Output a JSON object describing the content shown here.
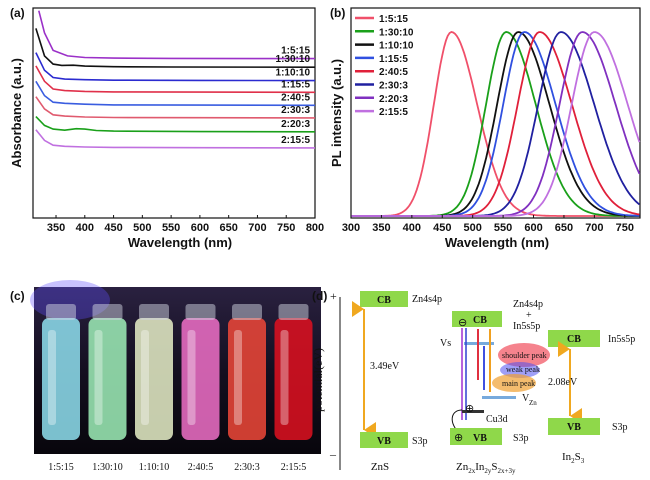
{
  "chart_data": [
    {
      "panel": "(a)",
      "type": "line",
      "xlabel": "Wavelength (nm)",
      "ylabel": "Absorbance (a.u.)",
      "xlim": [
        310,
        800
      ],
      "xticks": [
        350,
        400,
        450,
        500,
        550,
        600,
        650,
        700,
        750,
        800
      ],
      "series": [
        {
          "name": "1:5:15",
          "color": "#9b30c8",
          "points": [
            [
              320,
              0.94
            ],
            [
              330,
              0.84
            ],
            [
              345,
              0.76
            ],
            [
              370,
              0.735
            ],
            [
              400,
              0.728
            ],
            [
              450,
              0.725
            ],
            [
              550,
              0.724
            ],
            [
              800,
              0.723
            ]
          ]
        },
        {
          "name": "1:30:10",
          "color": "#111111",
          "points": [
            [
              315,
              0.86
            ],
            [
              330,
              0.735
            ],
            [
              345,
              0.698
            ],
            [
              360,
              0.692
            ],
            [
              380,
              0.693
            ],
            [
              400,
              0.689
            ],
            [
              450,
              0.686
            ],
            [
              550,
              0.685
            ],
            [
              800,
              0.684
            ]
          ]
        },
        {
          "name": "1:10:10",
          "color": "#2b2bd0",
          "points": [
            [
              315,
              0.75
            ],
            [
              330,
              0.67
            ],
            [
              345,
              0.637
            ],
            [
              365,
              0.63
            ],
            [
              400,
              0.627
            ],
            [
              450,
              0.625
            ],
            [
              600,
              0.624
            ],
            [
              800,
              0.623
            ]
          ]
        },
        {
          "name": "1:15:5",
          "color": "#e0304a",
          "points": [
            [
              315,
              0.69
            ],
            [
              330,
              0.62
            ],
            [
              345,
              0.585
            ],
            [
              365,
              0.578
            ],
            [
              400,
              0.574
            ],
            [
              450,
              0.572
            ],
            [
              600,
              0.571
            ],
            [
              800,
              0.57
            ]
          ]
        },
        {
          "name": "2:40:5",
          "color": "#3a5de0",
          "points": [
            [
              315,
              0.62
            ],
            [
              330,
              0.555
            ],
            [
              345,
              0.525
            ],
            [
              365,
              0.52
            ],
            [
              400,
              0.516
            ],
            [
              450,
              0.513
            ],
            [
              600,
              0.512
            ],
            [
              800,
              0.511
            ]
          ]
        },
        {
          "name": "2:30:3",
          "color": "#e05a6e",
          "points": [
            [
              315,
              0.55
            ],
            [
              330,
              0.495
            ],
            [
              345,
              0.468
            ],
            [
              365,
              0.462
            ],
            [
              400,
              0.458
            ],
            [
              450,
              0.456
            ],
            [
              600,
              0.455
            ],
            [
              800,
              0.454
            ]
          ]
        },
        {
          "name": "2:20:3",
          "color": "#1aa01a",
          "points": [
            [
              315,
              0.46
            ],
            [
              330,
              0.42
            ],
            [
              345,
              0.403
            ],
            [
              365,
              0.398
            ],
            [
              385,
              0.405
            ],
            [
              400,
              0.403
            ],
            [
              420,
              0.397
            ],
            [
              450,
              0.394
            ],
            [
              600,
              0.392
            ],
            [
              800,
              0.391
            ]
          ]
        },
        {
          "name": "2:15:5",
          "color": "#c070e0",
          "points": [
            [
              315,
              0.4
            ],
            [
              330,
              0.352
            ],
            [
              345,
              0.33
            ],
            [
              365,
              0.325
            ],
            [
              400,
              0.322
            ],
            [
              450,
              0.32
            ],
            [
              600,
              0.319
            ],
            [
              800,
              0.318
            ]
          ]
        }
      ]
    },
    {
      "panel": "(b)",
      "type": "line",
      "xlabel": "Wavelength (nm)",
      "ylabel": "PL intensity (a.u.)",
      "xlim": [
        300,
        775
      ],
      "xticks": [
        300,
        350,
        400,
        450,
        500,
        550,
        600,
        650,
        700,
        750
      ],
      "series": [
        {
          "name": "1:5:15",
          "color": "#f0506a",
          "peak": 465,
          "width": 48
        },
        {
          "name": "1:30:10",
          "color": "#1aa01a",
          "peak": 555,
          "width": 55
        },
        {
          "name": "1:10:10",
          "color": "#111111",
          "peak": 575,
          "width": 58
        },
        {
          "name": "1:15:5",
          "color": "#3050e0",
          "peak": 585,
          "width": 58
        },
        {
          "name": "2:40:5",
          "color": "#e0203a",
          "peak": 610,
          "width": 60
        },
        {
          "name": "2:30:3",
          "color": "#2020a0",
          "peak": 645,
          "width": 62
        },
        {
          "name": "2:20:3",
          "color": "#8030c0",
          "peak": 680,
          "width": 62
        },
        {
          "name": "2:15:5",
          "color": "#c070e0",
          "peak": 700,
          "width": 62
        }
      ]
    }
  ],
  "panel_c": {
    "label": "(c)",
    "vials": [
      {
        "label": "1:5:15",
        "color": "#8fe0f0"
      },
      {
        "label": "1:30:10",
        "color": "#9ff0b8"
      },
      {
        "label": "1:10:10",
        "color": "#e8f0c8"
      },
      {
        "label": "2:40:5",
        "color": "#f070c8"
      },
      {
        "label": "2:30:3",
        "color": "#f04838"
      },
      {
        "label": "2:15:5",
        "color": "#e01020"
      }
    ]
  },
  "panel_d": {
    "label": "(d)",
    "plus": "+",
    "minus": "–",
    "axis_label": "potential(eV)",
    "cb": "CB",
    "vb": "VB",
    "zn4s4p": "Zn4s4p",
    "s3p": "S3p",
    "gap_zns": "3.49eV",
    "zns": "ZnS",
    "zn4s4p_plus": "Zn4s4p",
    "plus_sign": "+",
    "in5s5p": "In5s5p",
    "vs": "Vs",
    "shoulder_peak": "shoulder peak",
    "weak_peak": "weak peak",
    "main_peak": "main peak",
    "vzn_main": "V",
    "vzn_sub": "Zn",
    "cu3d": "Cu3d",
    "gap_in2s3": "2.08eV",
    "in5s5p_right": "In5s5p",
    "s3p_right": "S3p",
    "s3p_mid": "S3p",
    "zis_zn": "Zn",
    "zis_zn_sub": "2x",
    "zis_in": "In",
    "zis_in_sub": "2y",
    "zis_s": "S",
    "zis_s_sub": "2x+3y",
    "in2s3_in": "In",
    "in2s3_sub2": "2",
    "in2s3_s": "S",
    "in2s3_sub3": "3",
    "electron": "⊖",
    "hole": "⊕"
  }
}
